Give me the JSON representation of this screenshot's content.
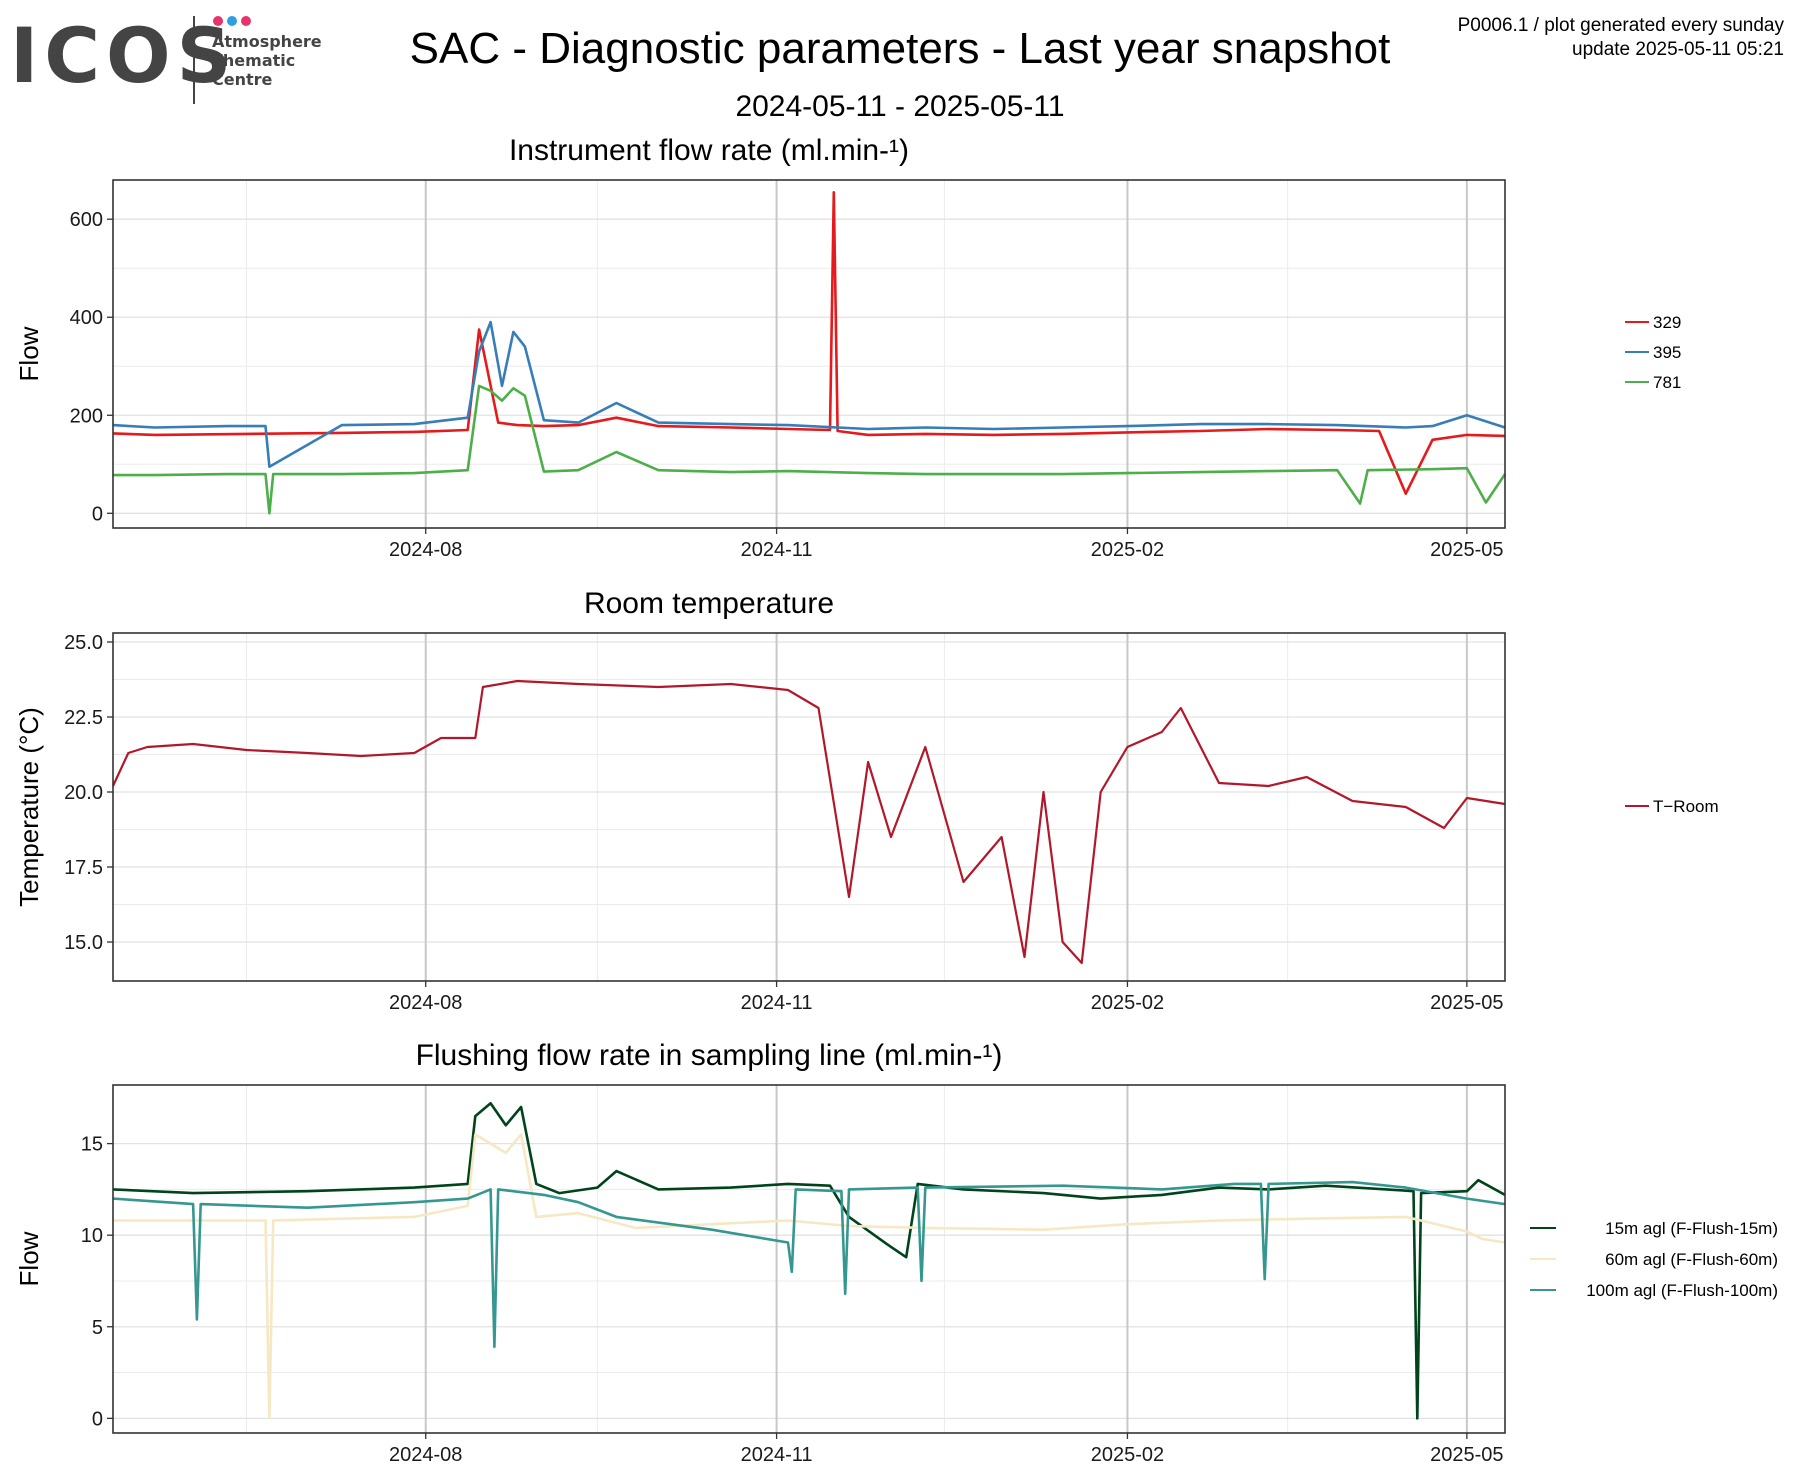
{
  "header": {
    "logo_text": "ICOS",
    "logo_lines": [
      "Atmosphere",
      "Thematic",
      "Centre"
    ],
    "title": "SAC - Diagnostic parameters - Last year snapshot",
    "date_range": "2024-05-11 - 2025-05-11",
    "note_line1": "P0006.1 / plot generated every sunday",
    "note_line2": "update  2025-05-11 05:21",
    "dot_colors": [
      "#e8336d",
      "#2e9fe0",
      "#e8336d"
    ]
  },
  "chart_data": [
    {
      "type": "line",
      "title": "Instrument flow rate (ml.min-¹)",
      "xlabel": "",
      "ylabel": "Flow",
      "x_range": [
        "2024-05-11",
        "2025-05-11"
      ],
      "x_ticks": [
        "2024-08",
        "2024-11",
        "2025-02",
        "2025-05"
      ],
      "ylim": [
        -30,
        680
      ],
      "y_ticks": [
        0,
        200,
        400,
        600
      ],
      "grid": true,
      "legend_position": "right",
      "series": [
        {
          "name": "329",
          "color": "#e41a1c",
          "x": [
            "2024-05-11",
            "2024-05-22",
            "2024-06-15",
            "2024-07-10",
            "2024-07-29",
            "2024-08-12",
            "2024-08-15",
            "2024-08-20",
            "2024-08-25",
            "2024-09-01",
            "2024-09-10",
            "2024-09-20",
            "2024-10-01",
            "2024-10-20",
            "2024-11-04",
            "2024-11-15",
            "2024-11-16",
            "2024-11-17",
            "2024-11-25",
            "2024-12-10",
            "2024-12-28",
            "2025-01-15",
            "2025-02-01",
            "2025-02-20",
            "2025-03-10",
            "2025-03-28",
            "2025-04-08",
            "2025-04-15",
            "2025-04-22",
            "2025-05-01",
            "2025-05-11"
          ],
          "y": [
            163,
            160,
            162,
            164,
            166,
            170,
            375,
            185,
            180,
            178,
            180,
            195,
            178,
            175,
            172,
            170,
            655,
            168,
            160,
            162,
            160,
            162,
            165,
            168,
            172,
            170,
            168,
            40,
            150,
            160,
            158
          ]
        },
        {
          "name": "395",
          "color": "#377eb8",
          "x": [
            "2024-05-11",
            "2024-05-22",
            "2024-06-10",
            "2024-06-20",
            "2024-06-21",
            "2024-07-10",
            "2024-07-29",
            "2024-08-12",
            "2024-08-15",
            "2024-08-18",
            "2024-08-21",
            "2024-08-24",
            "2024-08-27",
            "2024-09-01",
            "2024-09-10",
            "2024-09-20",
            "2024-10-01",
            "2024-10-20",
            "2024-11-04",
            "2024-11-25",
            "2024-12-10",
            "2024-12-28",
            "2025-01-15",
            "2025-02-01",
            "2025-02-20",
            "2025-03-10",
            "2025-03-28",
            "2025-04-15",
            "2025-04-22",
            "2025-05-01",
            "2025-05-11"
          ],
          "y": [
            180,
            175,
            178,
            178,
            95,
            180,
            182,
            195,
            330,
            390,
            260,
            370,
            340,
            190,
            185,
            225,
            185,
            182,
            180,
            172,
            175,
            172,
            175,
            178,
            182,
            182,
            180,
            175,
            178,
            200,
            175
          ]
        },
        {
          "name": "781",
          "color": "#4daf4a",
          "x": [
            "2024-05-11",
            "2024-05-22",
            "2024-06-10",
            "2024-06-20",
            "2024-06-21",
            "2024-06-22",
            "2024-07-10",
            "2024-07-29",
            "2024-08-12",
            "2024-08-15",
            "2024-08-18",
            "2024-08-21",
            "2024-08-24",
            "2024-08-27",
            "2024-09-01",
            "2024-09-10",
            "2024-09-20",
            "2024-10-01",
            "2024-10-20",
            "2024-11-04",
            "2024-11-25",
            "2024-12-10",
            "2024-12-28",
            "2025-01-15",
            "2025-02-01",
            "2025-02-20",
            "2025-03-10",
            "2025-03-28",
            "2025-04-03",
            "2025-04-05",
            "2025-04-22",
            "2025-05-01",
            "2025-05-06",
            "2025-05-11"
          ],
          "y": [
            78,
            78,
            80,
            80,
            0,
            80,
            80,
            82,
            88,
            260,
            250,
            230,
            255,
            240,
            85,
            88,
            125,
            88,
            84,
            86,
            82,
            80,
            80,
            80,
            82,
            84,
            86,
            88,
            20,
            88,
            90,
            92,
            22,
            80
          ]
        }
      ]
    },
    {
      "type": "line",
      "title": "Room temperature",
      "xlabel": "",
      "ylabel": "Temperature (°C)",
      "x_range": [
        "2024-05-11",
        "2025-05-11"
      ],
      "x_ticks": [
        "2024-08",
        "2024-11",
        "2025-02",
        "2025-05"
      ],
      "ylim": [
        13.7,
        25.3
      ],
      "y_ticks": [
        15.0,
        17.5,
        20.0,
        22.5,
        25.0
      ],
      "grid": true,
      "legend_position": "right",
      "series": [
        {
          "name": "T−Room",
          "color": "#b2182b",
          "x": [
            "2024-05-11",
            "2024-05-15",
            "2024-05-20",
            "2024-06-01",
            "2024-06-15",
            "2024-07-01",
            "2024-07-15",
            "2024-07-29",
            "2024-08-05",
            "2024-08-14",
            "2024-08-16",
            "2024-08-25",
            "2024-09-10",
            "2024-10-01",
            "2024-10-20",
            "2024-11-04",
            "2024-11-12",
            "2024-11-20",
            "2024-11-25",
            "2024-12-01",
            "2024-12-10",
            "2024-12-20",
            "2024-12-30",
            "2025-01-05",
            "2025-01-10",
            "2025-01-15",
            "2025-01-20",
            "2025-01-25",
            "2025-02-01",
            "2025-02-10",
            "2025-02-15",
            "2025-02-25",
            "2025-03-10",
            "2025-03-20",
            "2025-04-01",
            "2025-04-15",
            "2025-04-25",
            "2025-05-01",
            "2025-05-11"
          ],
          "y": [
            20.2,
            21.3,
            21.5,
            21.6,
            21.4,
            21.3,
            21.2,
            21.3,
            21.8,
            21.8,
            23.5,
            23.7,
            23.6,
            23.5,
            23.6,
            23.4,
            22.8,
            16.5,
            21.0,
            18.5,
            21.5,
            17.0,
            18.5,
            14.5,
            20.0,
            15.0,
            14.3,
            20.0,
            21.5,
            22.0,
            22.8,
            20.3,
            20.2,
            20.5,
            19.7,
            19.5,
            18.8,
            19.8,
            19.6
          ]
        }
      ]
    },
    {
      "type": "line",
      "title": "Flushing flow rate in sampling line (ml.min-¹)",
      "xlabel": "",
      "ylabel": "Flow",
      "x_range": [
        "2024-05-11",
        "2025-05-11"
      ],
      "x_ticks": [
        "2024-08",
        "2024-11",
        "2025-02",
        "2025-05"
      ],
      "ylim": [
        -0.8,
        18.2
      ],
      "y_ticks": [
        0,
        5,
        10,
        15
      ],
      "grid": true,
      "legend_position": "right",
      "series": [
        {
          "name": "15m agl (F-Flush-15m)",
          "color": "#00441b",
          "x": [
            "2024-05-11",
            "2024-06-01",
            "2024-07-01",
            "2024-07-29",
            "2024-08-12",
            "2024-08-14",
            "2024-08-18",
            "2024-08-22",
            "2024-08-26",
            "2024-08-30",
            "2024-09-05",
            "2024-09-15",
            "2024-09-20",
            "2024-10-01",
            "2024-10-20",
            "2024-11-04",
            "2024-11-15",
            "2024-11-20",
            "2024-11-30",
            "2024-12-05",
            "2024-12-08",
            "2024-12-20",
            "2025-01-10",
            "2025-01-25",
            "2025-02-10",
            "2025-02-25",
            "2025-03-10",
            "2025-03-25",
            "2025-04-10",
            "2025-04-17",
            "2025-04-18",
            "2025-04-19",
            "2025-05-01",
            "2025-05-04",
            "2025-05-11"
          ],
          "y": [
            12.5,
            12.3,
            12.4,
            12.6,
            12.8,
            16.5,
            17.2,
            16.0,
            17.0,
            12.8,
            12.3,
            12.6,
            13.5,
            12.5,
            12.6,
            12.8,
            12.7,
            11.0,
            9.5,
            8.8,
            12.8,
            12.5,
            12.3,
            12.0,
            12.2,
            12.6,
            12.5,
            12.7,
            12.5,
            12.4,
            0,
            12.3,
            12.4,
            13.0,
            12.2
          ]
        },
        {
          "name": "60m agl (F-Flush-60m)",
          "color": "#f6e8c3",
          "x": [
            "2024-05-11",
            "2024-06-01",
            "2024-06-20",
            "2024-06-21",
            "2024-06-22",
            "2024-07-10",
            "2024-07-29",
            "2024-08-12",
            "2024-08-14",
            "2024-08-18",
            "2024-08-22",
            "2024-08-26",
            "2024-08-30",
            "2024-09-10",
            "2024-09-25",
            "2024-10-15",
            "2024-11-04",
            "2024-11-20",
            "2024-12-10",
            "2025-01-10",
            "2025-02-01",
            "2025-02-25",
            "2025-03-20",
            "2025-04-15",
            "2025-05-01",
            "2025-05-05",
            "2025-05-11"
          ],
          "y": [
            10.8,
            10.8,
            10.8,
            0,
            10.8,
            10.9,
            11.0,
            11.6,
            15.5,
            15.0,
            14.5,
            15.5,
            11.0,
            11.2,
            10.4,
            10.6,
            10.8,
            10.5,
            10.4,
            10.3,
            10.6,
            10.8,
            10.9,
            11.0,
            10.2,
            9.8,
            9.6
          ]
        },
        {
          "name": "100m agl (F-Flush-100m)",
          "color": "#35978f",
          "x": [
            "2024-05-11",
            "2024-06-01",
            "2024-06-02",
            "2024-06-03",
            "2024-07-01",
            "2024-07-29",
            "2024-08-12",
            "2024-08-18",
            "2024-08-19",
            "2024-08-20",
            "2024-09-01",
            "2024-09-10",
            "2024-09-20",
            "2024-10-15",
            "2024-11-04",
            "2024-11-05",
            "2024-11-06",
            "2024-11-18",
            "2024-11-19",
            "2024-11-20",
            "2024-12-08",
            "2024-12-09",
            "2024-12-10",
            "2025-01-15",
            "2025-02-10",
            "2025-03-01",
            "2025-03-08",
            "2025-03-09",
            "2025-03-10",
            "2025-04-01",
            "2025-04-15",
            "2025-05-01",
            "2025-05-11"
          ],
          "y": [
            12.0,
            11.7,
            5.4,
            11.7,
            11.5,
            11.8,
            12.0,
            12.5,
            3.9,
            12.5,
            12.2,
            11.8,
            11.0,
            10.3,
            9.6,
            8.0,
            12.5,
            12.4,
            6.8,
            12.5,
            12.6,
            7.5,
            12.6,
            12.7,
            12.5,
            12.8,
            12.8,
            7.6,
            12.8,
            12.9,
            12.6,
            12.0,
            11.7
          ]
        }
      ]
    }
  ]
}
